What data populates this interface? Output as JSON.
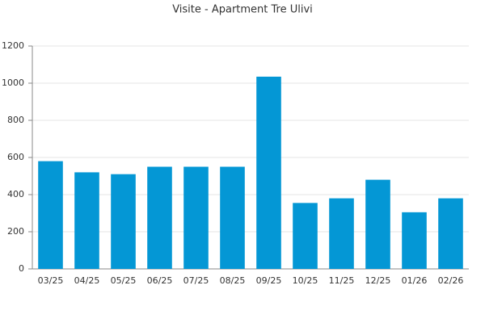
{
  "chart_data": {
    "type": "bar",
    "title": "Visite - Apartment Tre Ulivi",
    "categories": [
      "03/25",
      "04/25",
      "05/25",
      "06/25",
      "07/25",
      "08/25",
      "09/25",
      "10/25",
      "11/25",
      "12/25",
      "01/26",
      "02/26"
    ],
    "values": [
      580,
      520,
      510,
      550,
      550,
      550,
      1035,
      355,
      380,
      480,
      305,
      380
    ],
    "color": "#0497d5",
    "ylim": [
      0,
      1200
    ],
    "yticks": [
      0,
      200,
      400,
      600,
      800,
      1000,
      1200
    ],
    "grid": true
  }
}
